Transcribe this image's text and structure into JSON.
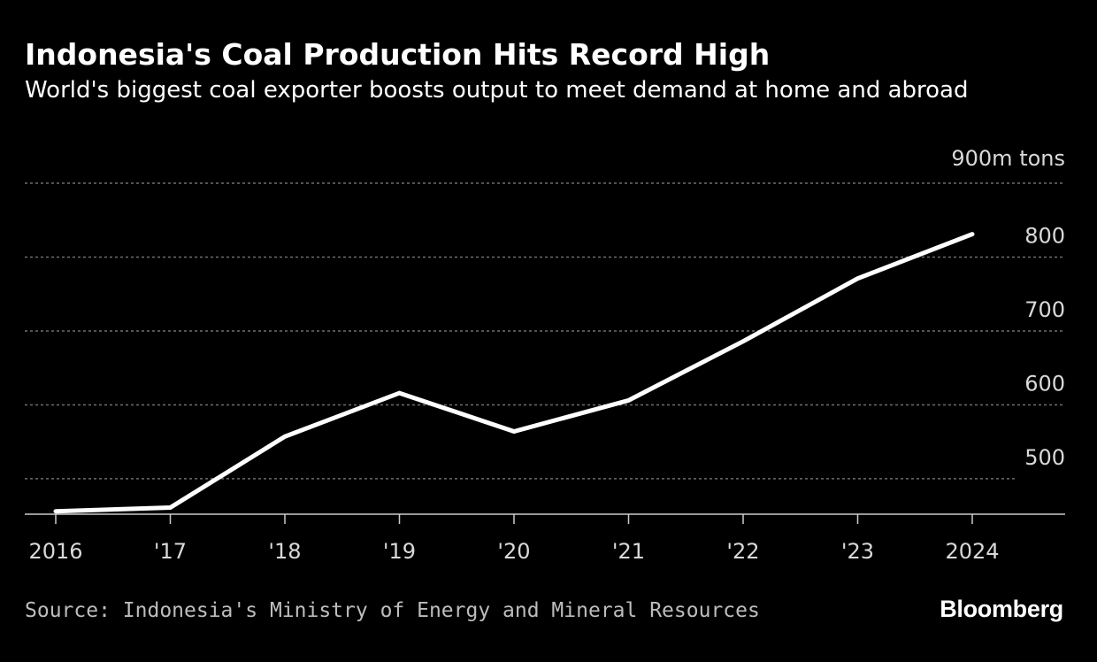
{
  "header": {
    "title": "Indonesia's Coal Production Hits Record High",
    "subtitle": "World's biggest coal exporter boosts output to meet demand at home and abroad"
  },
  "footer": {
    "source": "Source: Indonesia's Ministry of Energy and Mineral Resources",
    "brand": "Bloomberg"
  },
  "colors": {
    "background": "#000000",
    "line": "#ffffff",
    "grid": "#6e6e6e",
    "axis": "#cccccc",
    "tick_text": "#d9d9d9"
  },
  "chart_data": {
    "type": "line",
    "title": "Indonesia's Coal Production Hits Record High",
    "subtitle": "World's biggest coal exporter boosts output to meet demand at home and abroad",
    "unit_label": "900m tons",
    "x": [
      "2016",
      "'17",
      "'18",
      "'19",
      "'20",
      "'21",
      "'22",
      "'23",
      "2024"
    ],
    "series": [
      {
        "values": [
          456,
          461,
          557,
          616,
          564,
          606,
          686,
          771,
          831
        ]
      }
    ],
    "y_ticks": [
      500,
      600,
      700,
      800,
      900
    ],
    "y_tick_labels": [
      "500",
      "600",
      "700",
      "800",
      "900m tons"
    ],
    "ylim": [
      452,
      900
    ],
    "grid": true,
    "grid_style": "dotted",
    "y_axis_position": "right"
  }
}
